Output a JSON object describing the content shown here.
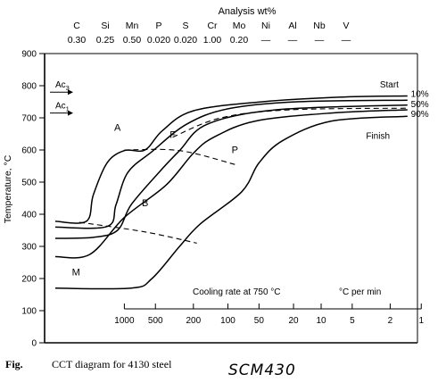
{
  "analysis": {
    "title": "Analysis wt%",
    "elements": [
      {
        "symbol": "C",
        "value": "0.30"
      },
      {
        "symbol": "Si",
        "value": "0.25"
      },
      {
        "symbol": "Mn",
        "value": "0.50"
      },
      {
        "symbol": "P",
        "value": "0.020"
      },
      {
        "symbol": "S",
        "value": "0.020"
      },
      {
        "symbol": "Cr",
        "value": "1.00"
      },
      {
        "symbol": "Mo",
        "value": "0.20"
      },
      {
        "symbol": "Ni",
        "value": "—"
      },
      {
        "symbol": "Al",
        "value": "—"
      },
      {
        "symbol": "Nb",
        "value": "—"
      },
      {
        "symbol": "V",
        "value": "—"
      }
    ]
  },
  "caption": {
    "fig_label": "Fig.",
    "text": "CCT diagram for 4130 steel",
    "handwritten": "SCM430"
  },
  "chart_data": {
    "type": "line",
    "ylabel": "Temperature, °C",
    "ylim": [
      0,
      900
    ],
    "yticks": [
      0,
      100,
      200,
      300,
      400,
      500,
      600,
      700,
      800,
      900
    ],
    "xscale": "log",
    "transformation_lines": [
      {
        "name": "Ac3",
        "temperature": 780
      },
      {
        "name": "Ac1",
        "temperature": 715
      }
    ],
    "curves": [
      {
        "name": "Start",
        "points": [
          [
            1.0,
            378
          ],
          [
            1.45,
            378
          ],
          [
            1.55,
            460
          ],
          [
            1.75,
            560
          ],
          [
            2.0,
            598
          ],
          [
            2.3,
            600
          ],
          [
            2.55,
            660
          ],
          [
            3.0,
            722
          ],
          [
            4.0,
            750
          ],
          [
            5.2,
            765
          ],
          [
            6.1,
            768
          ]
        ]
      },
      {
        "name": "10%",
        "points": [
          [
            1.0,
            360
          ],
          [
            1.75,
            362
          ],
          [
            1.88,
            430
          ],
          [
            2.05,
            530
          ],
          [
            2.4,
            595
          ],
          [
            2.9,
            680
          ],
          [
            3.5,
            728
          ],
          [
            4.5,
            750
          ],
          [
            6.1,
            755
          ]
        ]
      },
      {
        "name": "50%",
        "points": [
          [
            1.0,
            325
          ],
          [
            1.55,
            328
          ],
          [
            1.9,
            350
          ],
          [
            2.1,
            430
          ],
          [
            2.5,
            530
          ],
          [
            2.8,
            598
          ],
          [
            3.2,
            680
          ],
          [
            4.2,
            725
          ],
          [
            6.1,
            740
          ]
        ]
      },
      {
        "name": "90%",
        "points": [
          [
            1.0,
            268
          ],
          [
            1.5,
            275
          ],
          [
            2.0,
            390
          ],
          [
            2.6,
            490
          ],
          [
            3.0,
            590
          ],
          [
            3.3,
            640
          ],
          [
            3.9,
            690
          ],
          [
            5.0,
            715
          ],
          [
            6.1,
            725
          ]
        ]
      },
      {
        "name": "Finish",
        "points": [
          [
            1.0,
            170
          ],
          [
            2.1,
            170
          ],
          [
            2.4,
            200
          ],
          [
            2.8,
            300
          ],
          [
            3.1,
            370
          ],
          [
            3.7,
            470
          ],
          [
            3.95,
            560
          ],
          [
            4.3,
            630
          ],
          [
            5.0,
            690
          ],
          [
            6.1,
            705
          ]
        ]
      }
    ],
    "dashed_lines": [
      {
        "points": [
          [
            1.35,
            375
          ],
          [
            2.3,
            345
          ],
          [
            3.05,
            310
          ]
        ]
      },
      {
        "points": [
          [
            2.0,
            600
          ],
          [
            2.8,
            598
          ],
          [
            3.6,
            555
          ]
        ]
      },
      {
        "points": [
          [
            2.7,
            640
          ],
          [
            3.4,
            700
          ],
          [
            4.4,
            725
          ],
          [
            6.1,
            730
          ]
        ]
      }
    ],
    "region_labels": [
      {
        "text": "A",
        "x": 1.9,
        "y": 660
      },
      {
        "text": "F",
        "x": 2.7,
        "y": 638
      },
      {
        "text": "P",
        "x": 3.6,
        "y": 590
      },
      {
        "text": "B",
        "x": 2.3,
        "y": 425
      },
      {
        "text": "M",
        "x": 1.3,
        "y": 210
      }
    ],
    "curve_labels": [
      {
        "text": "Start",
        "x": 5.7,
        "y": 795
      },
      {
        "text": "10%",
        "x": 6.15,
        "y": 765
      },
      {
        "text": "50%",
        "x": 6.15,
        "y": 733
      },
      {
        "text": "90%",
        "x": 6.15,
        "y": 703
      },
      {
        "text": "Finish",
        "x": 5.5,
        "y": 635
      }
    ],
    "cooling_rate_scale": {
      "label": "Cooling rate at 750 °C",
      "unit": "°C per min",
      "ticks": [
        {
          "label": "1000",
          "x": 2.0
        },
        {
          "label": "500",
          "x": 2.45
        },
        {
          "label": "200",
          "x": 3.0
        },
        {
          "label": "100",
          "x": 3.5
        },
        {
          "label": "50",
          "x": 3.95
        },
        {
          "label": "20",
          "x": 4.45
        },
        {
          "label": "10",
          "x": 4.85
        },
        {
          "label": "5",
          "x": 5.3
        },
        {
          "label": "2",
          "x": 5.85
        },
        {
          "label": "1",
          "x": 6.3
        }
      ]
    }
  }
}
